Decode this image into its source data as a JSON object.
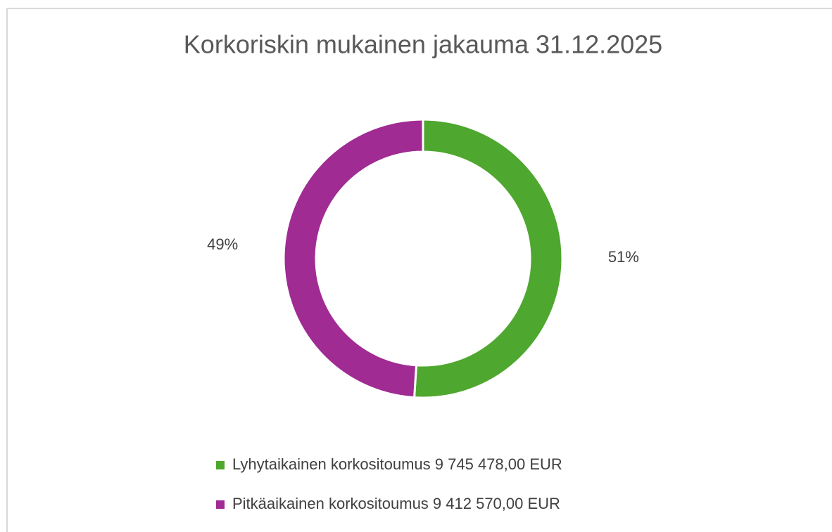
{
  "chart_data": {
    "type": "donut",
    "title": "Korkoriskin mukainen jakauma 31.12.2025",
    "categories": [
      "Lyhytaikainen korkositoumus 9 745 478,00 EUR",
      "Pitkäaikainen korkositoumus 9 412 570,00 EUR"
    ],
    "values": [
      51,
      49
    ],
    "value_labels": [
      "51%",
      "49%"
    ],
    "colors": [
      "#4ea72e",
      "#a02b93"
    ],
    "legend": "bottom"
  }
}
